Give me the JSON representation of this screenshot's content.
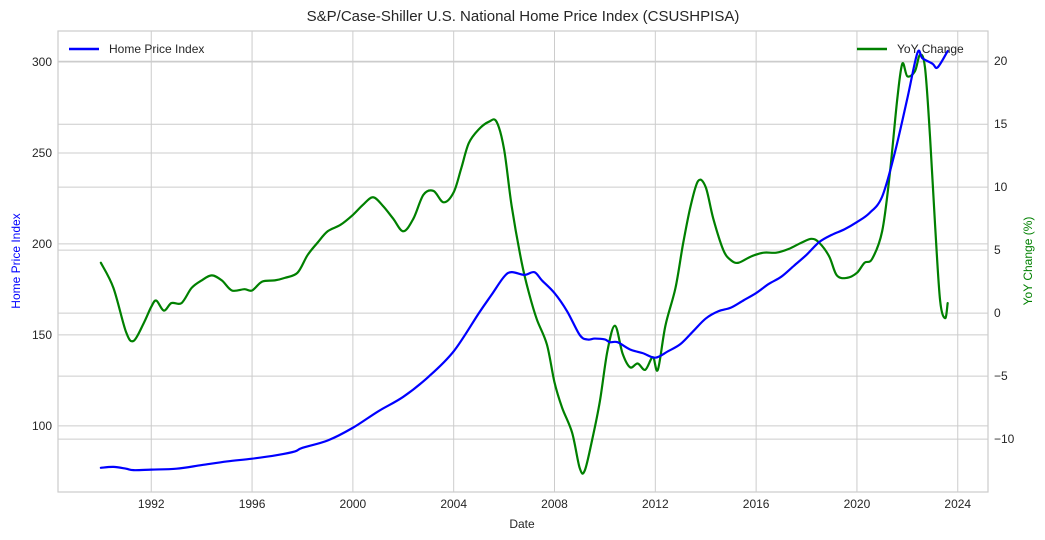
{
  "chart_data": {
    "type": "line",
    "title": "S&P/Case-Shiller U.S. National Home Price Index (CSUSHPISA)",
    "xlabel": "Date",
    "ylabel_left": "Home Price Index",
    "ylabel_right": "YoY Change (%)",
    "xlim": [
      1988.3,
      2025.2
    ],
    "ylim_left": [
      63.7,
      317
    ],
    "ylim_right": [
      -14.2,
      22.4
    ],
    "x_ticks": [
      1992,
      1996,
      2000,
      2004,
      2008,
      2012,
      2016,
      2020,
      2024
    ],
    "x_tick_labels": [
      "1992",
      "1996",
      "2000",
      "2004",
      "2008",
      "2012",
      "2016",
      "2020",
      "2024"
    ],
    "y_left_ticks": [
      100,
      150,
      200,
      250,
      300
    ],
    "y_left_tick_labels": [
      "100",
      "150",
      "200",
      "250",
      "300"
    ],
    "y_right_ticks": [
      -10,
      -5,
      0,
      5,
      10,
      15,
      20
    ],
    "y_right_tick_labels": [
      "−10",
      "−5",
      "0",
      "5",
      "10",
      "15",
      "20"
    ],
    "grid": true,
    "colors": {
      "hpi": "#0000ff",
      "yoy": "#008000",
      "grid": "#cccccc",
      "frame": "#cccccc",
      "text": "#262626"
    },
    "legends": [
      {
        "label": "Home Price Index",
        "placement": "upper-left",
        "series": "hpi"
      },
      {
        "label": "YoY Change",
        "placement": "upper-right",
        "series": "yoy"
      }
    ],
    "series": [
      {
        "name": "Home Price Index",
        "key": "hpi",
        "axis": "left",
        "x": [
          1990.0,
          1990.5,
          1991.0,
          1991.3,
          1992.0,
          1993.0,
          1994.0,
          1995.0,
          1996.0,
          1997.0,
          1997.7,
          1998.0,
          1999.0,
          2000.0,
          2001.0,
          2002.0,
          2003.0,
          2004.0,
          2005.0,
          2005.5,
          2006.0,
          2006.3,
          2006.8,
          2007.2,
          2007.5,
          2008.0,
          2008.5,
          2009.0,
          2009.3,
          2009.6,
          2010.0,
          2010.2,
          2010.5,
          2011.0,
          2011.5,
          2012.0,
          2012.5,
          2013.0,
          2013.5,
          2014.0,
          2014.5,
          2015.0,
          2015.5,
          2016.0,
          2016.5,
          2017.0,
          2017.5,
          2018.0,
          2018.5,
          2019.0,
          2019.5,
          2020.0,
          2020.5,
          2021.0,
          2021.5,
          2022.0,
          2022.4,
          2022.6,
          2023.0,
          2023.2,
          2023.6
        ],
        "values": [
          77,
          77.5,
          76.5,
          75.7,
          76,
          76.5,
          78.5,
          80.5,
          82,
          84,
          86,
          88,
          92,
          99,
          108,
          116,
          127,
          141,
          162,
          172,
          182,
          184.5,
          183,
          184.5,
          180,
          173,
          163,
          150,
          147.5,
          148,
          147.5,
          146,
          146,
          142,
          140,
          137.5,
          141,
          145,
          152,
          159,
          163,
          165,
          169,
          173,
          178,
          182,
          188,
          194,
          201,
          205,
          208,
          212,
          217,
          226,
          250,
          280,
          305,
          302,
          299,
          297,
          306
        ]
      },
      {
        "name": "YoY Change",
        "key": "yoy",
        "axis": "right",
        "x": [
          1990.0,
          1990.5,
          1991.0,
          1991.3,
          1991.7,
          1992.0,
          1992.2,
          1992.5,
          1992.8,
          1993.2,
          1993.6,
          1994.0,
          1994.4,
          1994.8,
          1995.2,
          1995.7,
          1996.0,
          1996.4,
          1996.9,
          1997.3,
          1997.8,
          1998.2,
          1998.6,
          1999.0,
          1999.5,
          2000.0,
          2000.4,
          2000.8,
          2001.2,
          2001.6,
          2002.0,
          2002.4,
          2002.8,
          2003.2,
          2003.6,
          2004.0,
          2004.3,
          2004.6,
          2005.0,
          2005.4,
          2005.7,
          2006.0,
          2006.3,
          2006.7,
          2007.0,
          2007.3,
          2007.7,
          2008.0,
          2008.3,
          2008.7,
          2009.0,
          2009.2,
          2009.5,
          2009.8,
          2010.1,
          2010.4,
          2010.7,
          2011.0,
          2011.3,
          2011.6,
          2011.9,
          2012.1,
          2012.4,
          2012.8,
          2013.1,
          2013.4,
          2013.7,
          2014.0,
          2014.3,
          2014.7,
          2015.0,
          2015.3,
          2015.8,
          2016.3,
          2016.8,
          2017.3,
          2017.8,
          2018.2,
          2018.5,
          2018.9,
          2019.2,
          2019.6,
          2020.0,
          2020.3,
          2020.6,
          2021.0,
          2021.3,
          2021.6,
          2021.8,
          2022.0,
          2022.3,
          2022.5,
          2022.7,
          2022.9,
          2023.1,
          2023.3,
          2023.5,
          2023.6
        ],
        "values": [
          4,
          2,
          -1.5,
          -2.2,
          -0.8,
          0.5,
          1.0,
          0.2,
          0.8,
          0.8,
          2,
          2.6,
          3,
          2.6,
          1.8,
          1.9,
          1.8,
          2.5,
          2.6,
          2.8,
          3.2,
          4.6,
          5.6,
          6.5,
          7,
          7.8,
          8.6,
          9.2,
          8.5,
          7.5,
          6.5,
          7.5,
          9.4,
          9.7,
          8.8,
          9.6,
          11.5,
          13.5,
          14.6,
          15.2,
          15.2,
          13,
          8.5,
          4,
          1.5,
          -0.5,
          -2.5,
          -5.5,
          -7.5,
          -9.5,
          -12.3,
          -12.5,
          -10,
          -7,
          -3,
          -1,
          -3.2,
          -4.3,
          -4,
          -4.5,
          -3.5,
          -4.5,
          -1,
          2,
          5.5,
          8.5,
          10.5,
          10,
          7.5,
          5,
          4.2,
          4,
          4.5,
          4.8,
          4.8,
          5.1,
          5.6,
          5.9,
          5.6,
          4.5,
          3,
          2.8,
          3.2,
          4,
          4.3,
          6.5,
          11,
          17,
          19.8,
          18.8,
          19.2,
          20.5,
          19.5,
          14,
          7,
          1,
          -0.4,
          0.8
        ]
      }
    ]
  }
}
